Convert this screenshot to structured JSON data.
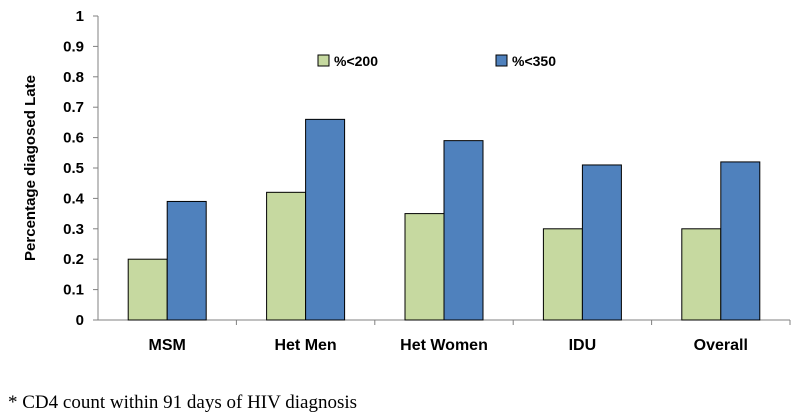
{
  "chart_data": {
    "type": "bar",
    "categories": [
      "MSM",
      "Het Men",
      "Het Women",
      "IDU",
      "Overall"
    ],
    "series": [
      {
        "name": "%<200",
        "values": [
          0.2,
          0.42,
          0.35,
          0.3,
          0.3
        ],
        "color": "#c6d9a0"
      },
      {
        "name": "%<350",
        "values": [
          0.39,
          0.66,
          0.59,
          0.51,
          0.52
        ],
        "color": "#4f81bd"
      }
    ],
    "ylabel": "Percentage diagosed Late",
    "ylim": [
      0,
      1
    ],
    "yticks": [
      "0",
      "0.1",
      "0.2",
      "0.3",
      "0.4",
      "0.5",
      "0.6",
      "0.7",
      "0.8",
      "0.9",
      "1"
    ],
    "grid": false,
    "legend_position": "top"
  },
  "footnote": "* CD4 count within 91 days of HIV diagnosis"
}
